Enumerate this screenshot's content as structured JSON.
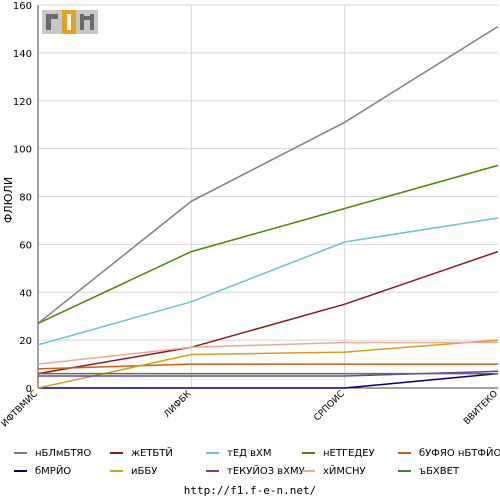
{
  "chart_data": {
    "type": "line",
    "ylabel": "ФЛЮЛИ",
    "xlabel": "",
    "title": "",
    "categories": [
      "ИФТВМИС",
      "ЛИФБК",
      "СРПОИС",
      "ВВИТЕКО"
    ],
    "ylim": [
      0,
      160
    ],
    "yticks": [
      0,
      20,
      40,
      60,
      80,
      100,
      120,
      140,
      160
    ],
    "grid": true,
    "legend": "bottom",
    "series": [
      {
        "name": "нБЛмБТЯО",
        "color": "#808080",
        "values": [
          27,
          78,
          111,
          151
        ]
      },
      {
        "name": "жЕТБТЙ",
        "color": "#8b1a1a",
        "values": [
          6,
          17,
          35,
          57
        ]
      },
      {
        "name": "тЕД вХМ",
        "color": "#6fc2cf",
        "values": [
          18,
          36,
          61,
          71
        ]
      },
      {
        "name": "нЕТГЕДЕУ",
        "color": "#4a8a00",
        "values": [
          27,
          57,
          75,
          93
        ]
      },
      {
        "name": "бУФЯО нБТФЙО",
        "color": "#c8601a",
        "values": [
          8,
          10,
          10,
          10
        ]
      },
      {
        "name": "бМРЙО",
        "color": "#000070",
        "values": [
          0,
          0,
          0,
          6
        ]
      },
      {
        "name": "иББУ",
        "color": "#d4a020",
        "values": [
          0,
          14,
          15,
          20
        ]
      },
      {
        "name": "тЕКУЙОЗ вХМУ",
        "color": "#7a3aa8",
        "values": [
          5,
          5,
          5,
          7
        ]
      },
      {
        "name": "хЙМСНУ",
        "color": "#f0a890",
        "values": [
          10,
          17,
          19,
          19
        ]
      },
      {
        "name": "ъБХВЕТ",
        "color": "#4a7a4a",
        "values": [
          6,
          6,
          6,
          6
        ]
      }
    ]
  },
  "footer": {
    "url": "http://f1.f-e-n.net/"
  }
}
